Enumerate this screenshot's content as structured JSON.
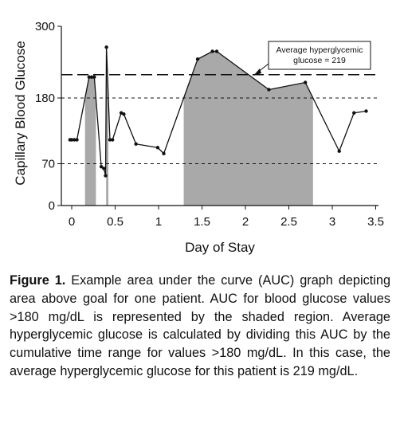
{
  "chart_data": {
    "type": "area",
    "xlabel": "Day of Stay",
    "ylabel": "Capillary Blood Glucose",
    "xlim": [
      -0.1,
      3.5
    ],
    "ylim": [
      0,
      300
    ],
    "xticks": [
      "0",
      "0.5",
      "1",
      "1.5",
      "2",
      "2.5",
      "3",
      "3.5"
    ],
    "yticks": [
      "0",
      "70",
      "180",
      "300"
    ],
    "reference_lines": [
      {
        "value": 219,
        "style": "long-dash"
      },
      {
        "value": 180,
        "style": "short-dash"
      },
      {
        "value": 70,
        "style": "short-dash"
      }
    ],
    "annotation": {
      "line1": "Average hyperglycemic",
      "line2": "glucose = 219"
    },
    "series": [
      {
        "points": [
          [
            -0.02,
            110
          ],
          [
            0.0,
            110
          ],
          [
            0.03,
            110
          ],
          [
            0.06,
            110
          ],
          [
            0.2,
            215
          ],
          [
            0.23,
            215
          ],
          [
            0.26,
            215
          ],
          [
            0.34,
            65
          ],
          [
            0.37,
            62
          ],
          [
            0.39,
            50
          ],
          [
            0.4,
            265
          ],
          [
            0.44,
            110
          ],
          [
            0.47,
            110
          ],
          [
            0.57,
            155
          ],
          [
            0.6,
            153
          ],
          [
            0.74,
            103
          ],
          [
            0.99,
            97
          ],
          [
            1.06,
            87
          ],
          [
            1.45,
            245
          ],
          [
            1.62,
            258
          ],
          [
            1.67,
            258
          ],
          [
            2.27,
            194
          ],
          [
            2.69,
            206
          ],
          [
            3.08,
            91
          ],
          [
            3.25,
            155
          ],
          [
            3.39,
            158
          ]
        ],
        "area_threshold": 180,
        "fill": "#a9a9a9"
      }
    ]
  },
  "caption": {
    "label": "Figure 1.",
    "text": " Example area under the curve (AUC) graph depicting area above goal for one patient. AUC for blood glucose values >180 mg/dL is represented by the shaded region. Average hyperglycemic glucose is calculated by dividing this AUC by the cumulative time range for values >180 mg/dL. In this case, the average hyperglycemic glucose for this patient is 219 mg/dL."
  }
}
